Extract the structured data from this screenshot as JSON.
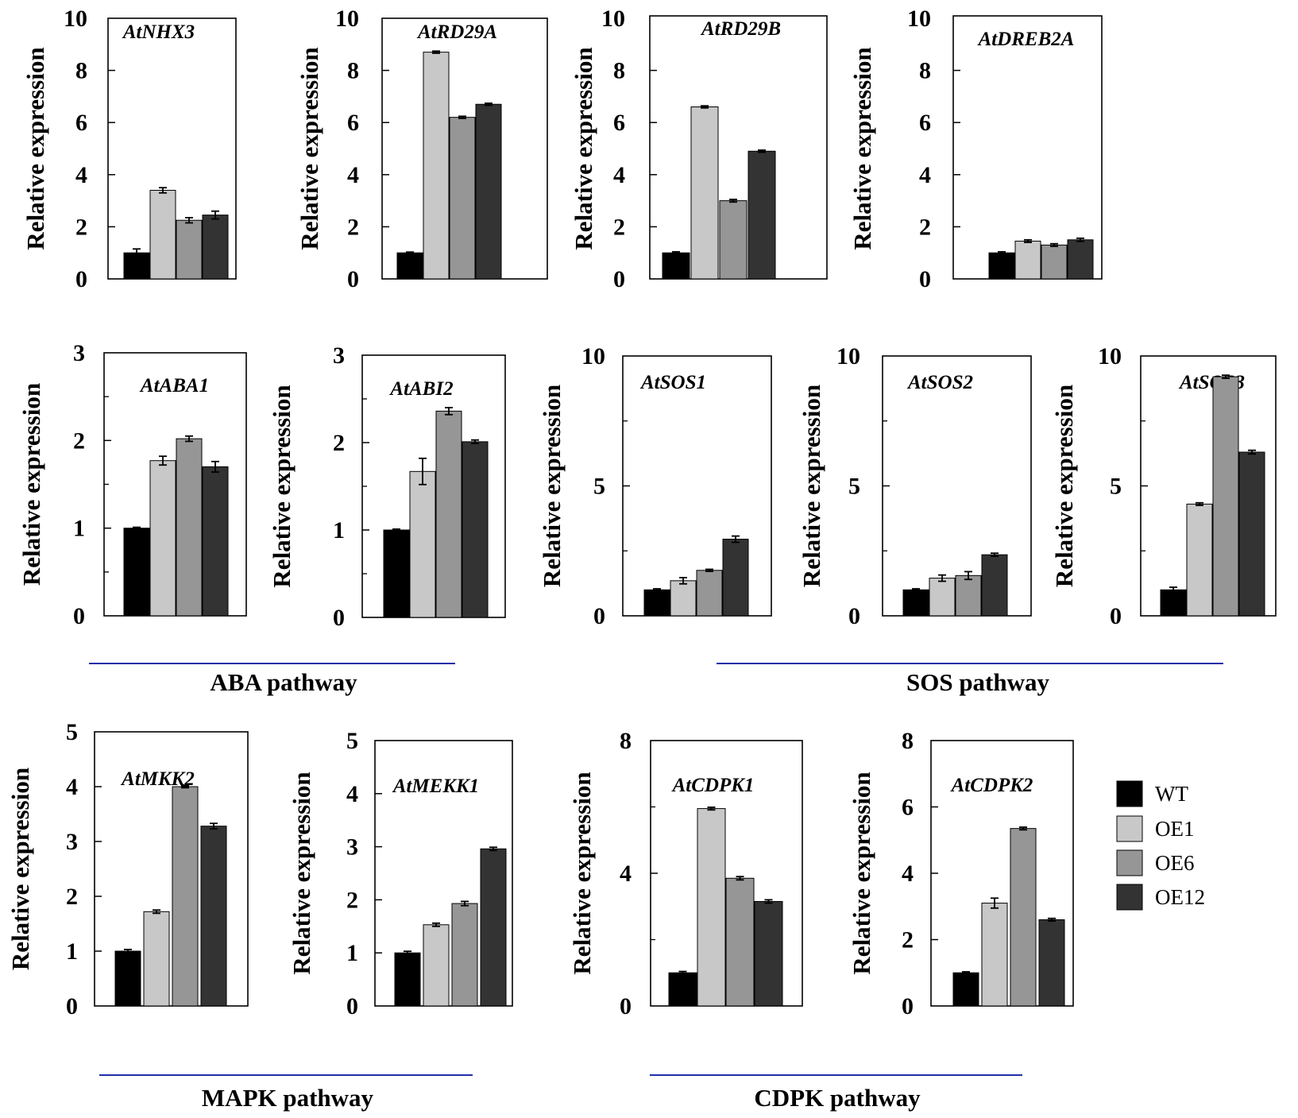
{
  "legend": {
    "items": [
      {
        "label": "WT",
        "color": "#000000"
      },
      {
        "label": "OE1",
        "color": "#c8c8c8"
      },
      {
        "label": "OE6",
        "color": "#969696"
      },
      {
        "label": "OE12",
        "color": "#333333"
      }
    ]
  },
  "pathways": [
    {
      "label": "ABA pathway"
    },
    {
      "label": "SOS pathway"
    },
    {
      "label": "MAPK pathway"
    },
    {
      "label": "CDPK pathway"
    }
  ],
  "colors": {
    "axis": "#000000",
    "pathway_line": "#1f2fa8"
  },
  "chart_data": [
    {
      "type": "bar",
      "title": "AtNHX3",
      "ylabel": "Relative expression",
      "ylim": [
        0,
        10
      ],
      "yticks": [
        0,
        2,
        4,
        6,
        8,
        10
      ],
      "series": [
        "WT",
        "OE1",
        "OE6",
        "OE12"
      ],
      "values": [
        1.0,
        3.4,
        2.25,
        2.45
      ],
      "errors": [
        0.15,
        0.1,
        0.1,
        0.15
      ]
    },
    {
      "type": "bar",
      "title": "AtRD29A",
      "ylabel": "Relative expression",
      "ylim": [
        0,
        10
      ],
      "yticks": [
        0,
        2,
        4,
        6,
        8,
        10
      ],
      "series": [
        "WT",
        "OE1",
        "OE6",
        "OE12"
      ],
      "values": [
        1.0,
        8.7,
        6.2,
        6.7
      ],
      "errors": [
        0.03,
        0.04,
        0.04,
        0.04
      ]
    },
    {
      "type": "bar",
      "title": "AtRD29B",
      "ylabel": "Relative expression",
      "ylim": [
        0,
        10
      ],
      "yticks": [
        0,
        2,
        4,
        6,
        8,
        10
      ],
      "series": [
        "WT",
        "OE1",
        "OE6",
        "OE12"
      ],
      "values": [
        1.0,
        6.6,
        3.0,
        4.9
      ],
      "errors": [
        0.04,
        0.04,
        0.05,
        0.04
      ]
    },
    {
      "type": "bar",
      "title": "AtDREB2A",
      "ylabel": "Relative expression",
      "ylim": [
        0,
        10
      ],
      "yticks": [
        0,
        2,
        4,
        6,
        8,
        10
      ],
      "series": [
        "WT",
        "OE1",
        "OE6",
        "OE12"
      ],
      "values": [
        1.0,
        1.45,
        1.3,
        1.5
      ],
      "errors": [
        0.04,
        0.05,
        0.05,
        0.06
      ]
    },
    {
      "type": "bar",
      "title": "AtABA1",
      "ylabel": "Relative expression",
      "ylim": [
        0,
        3
      ],
      "yticks": [
        0,
        1,
        2,
        3
      ],
      "minor_ticks": true,
      "series": [
        "WT",
        "OE1",
        "OE6",
        "OE12"
      ],
      "values": [
        1.0,
        1.77,
        2.02,
        1.7
      ],
      "errors": [
        0.01,
        0.05,
        0.03,
        0.06
      ]
    },
    {
      "type": "bar",
      "title": "AtABI2",
      "ylabel": "Relative expression",
      "ylim": [
        0,
        3
      ],
      "yticks": [
        0,
        1,
        2,
        3
      ],
      "minor_ticks": true,
      "series": [
        "WT",
        "OE1",
        "OE6",
        "OE12"
      ],
      "values": [
        1.0,
        1.67,
        2.36,
        2.01
      ],
      "errors": [
        0.01,
        0.15,
        0.04,
        0.02
      ]
    },
    {
      "type": "bar",
      "title": "AtSOS1",
      "ylabel": "Relative expression",
      "ylim": [
        0,
        10
      ],
      "yticks": [
        0,
        5,
        10
      ],
      "minor_ticks": true,
      "series": [
        "WT",
        "OE1",
        "OE6",
        "OE12"
      ],
      "values": [
        1.0,
        1.35,
        1.75,
        2.95
      ],
      "errors": [
        0.04,
        0.12,
        0.04,
        0.12
      ]
    },
    {
      "type": "bar",
      "title": "AtSOS2",
      "ylabel": "Relative expression",
      "ylim": [
        0,
        10
      ],
      "yticks": [
        0,
        5,
        10
      ],
      "minor_ticks": true,
      "series": [
        "WT",
        "OE1",
        "OE6",
        "OE12"
      ],
      "values": [
        1.0,
        1.45,
        1.55,
        2.35
      ],
      "errors": [
        0.04,
        0.12,
        0.15,
        0.06
      ]
    },
    {
      "type": "bar",
      "title": "AtSOS3",
      "ylabel": "Relative expression",
      "ylim": [
        0,
        10
      ],
      "yticks": [
        0,
        5,
        10
      ],
      "minor_ticks": true,
      "series": [
        "WT",
        "OE1",
        "OE6",
        "OE12"
      ],
      "values": [
        1.0,
        4.3,
        9.2,
        6.3
      ],
      "errors": [
        0.1,
        0.05,
        0.06,
        0.07
      ]
    },
    {
      "type": "bar",
      "title": "AtMKK2",
      "ylabel": "Relative expression",
      "ylim": [
        0,
        5
      ],
      "yticks": [
        0,
        1,
        2,
        3,
        4,
        5
      ],
      "series": [
        "WT",
        "OE1",
        "OE6",
        "OE12"
      ],
      "values": [
        1.0,
        1.72,
        4.0,
        3.28
      ],
      "errors": [
        0.03,
        0.03,
        0.02,
        0.05
      ]
    },
    {
      "type": "bar",
      "title": "AtMEKK1",
      "ylabel": "Relative expression",
      "ylim": [
        0,
        5
      ],
      "yticks": [
        0,
        1,
        2,
        3,
        4,
        5
      ],
      "series": [
        "WT",
        "OE1",
        "OE6",
        "OE12"
      ],
      "values": [
        1.0,
        1.53,
        1.93,
        2.96
      ],
      "errors": [
        0.03,
        0.03,
        0.04,
        0.03
      ]
    },
    {
      "type": "bar",
      "title": "AtCDPK1",
      "ylabel": "Relative expression",
      "ylim": [
        0,
        8
      ],
      "yticks": [
        0,
        4,
        8
      ],
      "minor_ticks": true,
      "series": [
        "WT",
        "OE1",
        "OE6",
        "OE12"
      ],
      "values": [
        1.0,
        5.95,
        3.85,
        3.15
      ],
      "errors": [
        0.04,
        0.04,
        0.05,
        0.05
      ]
    },
    {
      "type": "bar",
      "title": "AtCDPK2",
      "ylabel": "Relative expression",
      "ylim": [
        0,
        8
      ],
      "yticks": [
        0,
        2,
        4,
        6,
        8
      ],
      "series": [
        "WT",
        "OE1",
        "OE6",
        "OE12"
      ],
      "values": [
        1.0,
        3.1,
        5.35,
        2.6
      ],
      "errors": [
        0.03,
        0.15,
        0.04,
        0.04
      ]
    }
  ]
}
